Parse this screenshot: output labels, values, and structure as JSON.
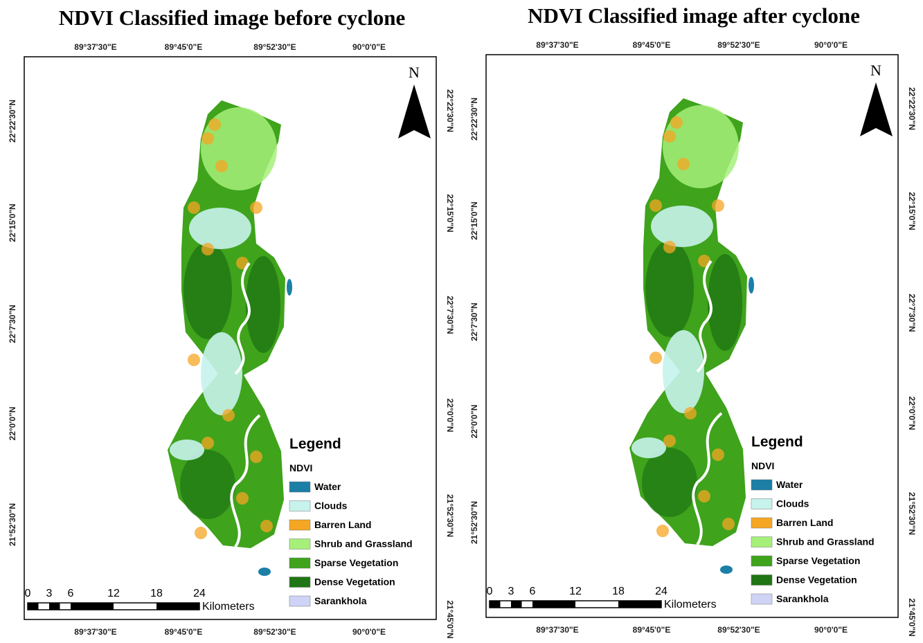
{
  "panels": [
    {
      "title": "NDVI Classified image before cyclone",
      "top_labels": [
        "89°37'30\"E",
        "89°45'0\"E",
        "89°52'30\"E",
        "90°0'0\"E"
      ],
      "bottom_labels": [
        "89°37'30\"E",
        "89°45'0\"E",
        "89°52'30\"E",
        "90°0'0\"E"
      ],
      "left_labels": [
        "22°22'30\"N",
        "22°15'0\"N",
        "22°7'30\"N",
        "22°0'0\"N",
        "21°52'30\"N"
      ],
      "right_labels": [
        "22°22'30\"N",
        "22°15'0\"N",
        "22°7'30\"N",
        "22°0'0\"N",
        "21°52'30\"N",
        "21°45'0\"N"
      ],
      "north": "N",
      "legend": {
        "title": "Legend",
        "subtitle": "NDVI",
        "items": [
          {
            "label": "Water",
            "color": "#1b7fa6"
          },
          {
            "label": "Clouds",
            "color": "#c6f3ec"
          },
          {
            "label": "Barren Land",
            "color": "#f5a623"
          },
          {
            "label": "Shrub and Grassland",
            "color": "#a6f07a"
          },
          {
            "label": "Sparse Vegetation",
            "color": "#3fa31c"
          },
          {
            "label": "Dense Vegetation",
            "color": "#207514"
          },
          {
            "label": "Sarankhola",
            "color": "#cfd3f5"
          }
        ]
      },
      "scale": {
        "ticks": [
          0,
          3,
          6,
          12,
          18,
          24
        ],
        "unit": "Kilometers"
      }
    },
    {
      "title": "NDVI Classified image after cyclone",
      "top_labels": [
        "89°37'30\"E",
        "89°45'0\"E",
        "89°52'30\"E",
        "90°0'0\"E"
      ],
      "bottom_labels": [
        "89°37'30\"E",
        "89°45'0\"E",
        "89°52'30\"E",
        "90°0'0\"E"
      ],
      "left_labels": [
        "22°22'30\"N",
        "22°15'0\"N",
        "22°7'30\"N",
        "22°0'0\"N",
        "21°52'30\"N"
      ],
      "right_labels": [
        "22°22'30\"N",
        "22°15'0\"N",
        "22°7'30\"N",
        "22°0'0\"N",
        "21°52'30\"N",
        "21°45'0\"N"
      ],
      "north": "N",
      "legend": {
        "title": "Legend",
        "subtitle": "NDVI",
        "items": [
          {
            "label": "Water",
            "color": "#1b7fa6"
          },
          {
            "label": "Clouds",
            "color": "#c6f3ec"
          },
          {
            "label": "Barren Land",
            "color": "#f5a623"
          },
          {
            "label": "Shrub and Grassland",
            "color": "#a6f07a"
          },
          {
            "label": "Sparse Vegetation",
            "color": "#3fa31c"
          },
          {
            "label": "Dense Vegetation",
            "color": "#207514"
          },
          {
            "label": "Sarankhola",
            "color": "#cfd3f5"
          }
        ]
      },
      "scale": {
        "ticks": [
          0,
          3,
          6,
          12,
          18,
          24
        ],
        "unit": "Kilometers"
      }
    }
  ]
}
